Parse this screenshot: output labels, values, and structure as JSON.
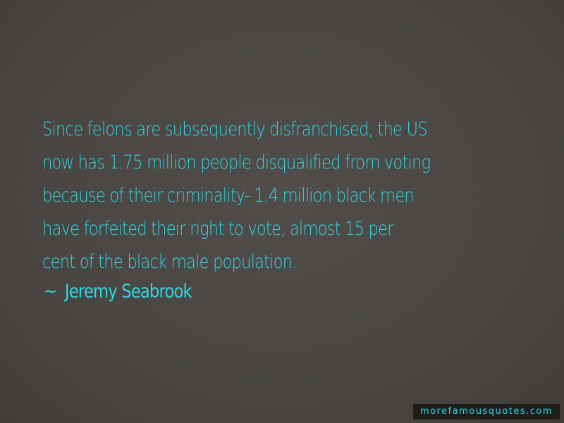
{
  "quote": {
    "lines": [
      "Since felons are subsequently disfranchised, the US",
      "now has  1.75 million people disqualified from voting",
      "because of their criminality-  1.4 million black men",
      "have forfeited their right to vote, almost  15 per",
      "cent of the black male population."
    ],
    "author_prefix": "~",
    "author": "Jeremy Seabrook"
  },
  "watermark": "morefamousquotes.com",
  "colors": {
    "background": "#4a4744",
    "text": "#2fd7e3",
    "watermark_bg": "#1f1d1c"
  }
}
